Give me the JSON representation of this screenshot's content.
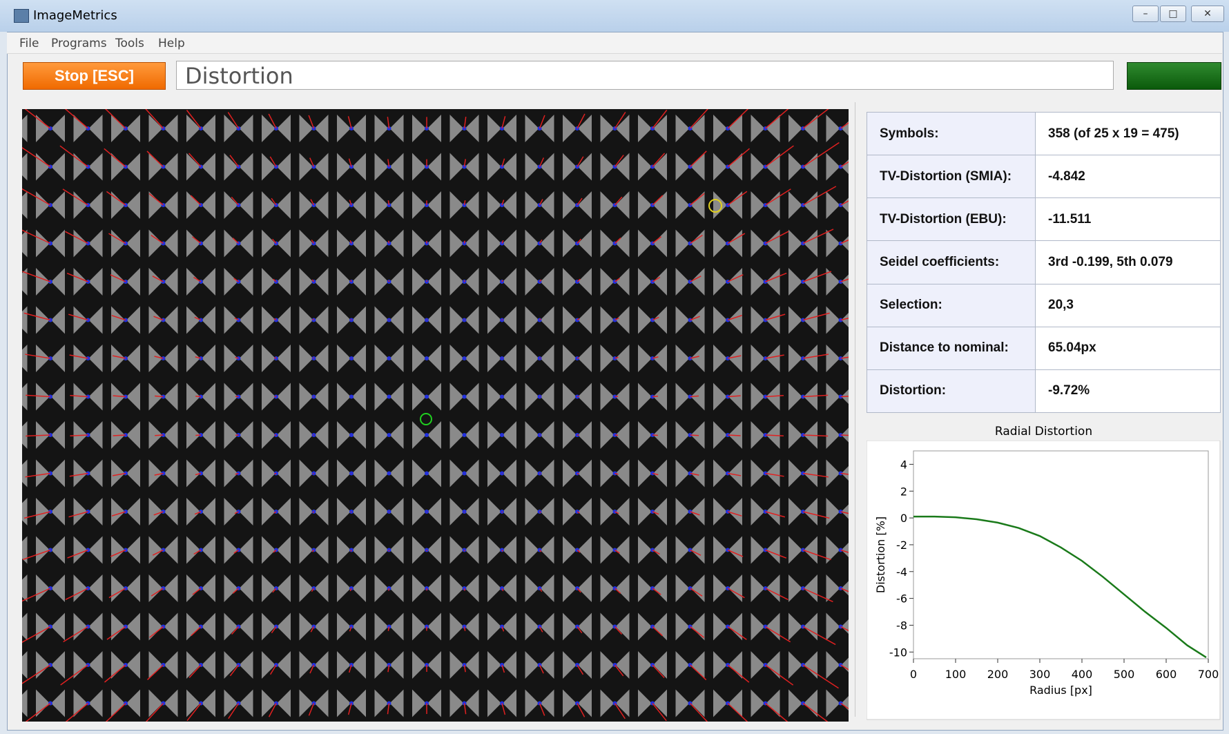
{
  "window": {
    "title": "ImageMetrics"
  },
  "menu": [
    "File",
    "Programs",
    "Tools",
    "Help"
  ],
  "toolbar": {
    "button": "Stop [ESC]",
    "program": "Distortion"
  },
  "table": {
    "rows": [
      [
        "Symbols:",
        "358 (of 25 x 19 = 475)"
      ],
      [
        "TV-Distortion (SMIA):",
        "-4.842"
      ],
      [
        "TV-Distortion (EBU):",
        "-11.511"
      ],
      [
        "Seidel coefficients:",
        "3rd -0.199, 5th 0.079"
      ],
      [
        "Selection:",
        "20,3"
      ],
      [
        "Distance to nominal:",
        "65.04px"
      ],
      [
        "Distortion:",
        "-9.72%"
      ]
    ]
  },
  "chart_data": {
    "type": "line",
    "title": "Radial Distortion",
    "x_label": "Radius [px]",
    "y_label": "Distortion [%]",
    "x": [
      0,
      50,
      100,
      150,
      200,
      250,
      300,
      350,
      400,
      450,
      500,
      550,
      600,
      650,
      695
    ],
    "series": [
      {
        "name": "Distortion",
        "color": "#1a7a1a",
        "values": [
          0.1,
          0.1,
          0.05,
          -0.1,
          -0.35,
          -0.75,
          -1.35,
          -2.2,
          -3.2,
          -4.4,
          -5.7,
          -7.0,
          -8.2,
          -9.5,
          -10.4
        ]
      }
    ],
    "xlim": [
      0,
      700
    ],
    "ylim": [
      -10.5,
      5
    ],
    "xticks": [
      0,
      100,
      200,
      300,
      400,
      500,
      600,
      700
    ],
    "yticks": [
      -10,
      -8,
      -6,
      -4,
      -2,
      0,
      2,
      4
    ]
  }
}
